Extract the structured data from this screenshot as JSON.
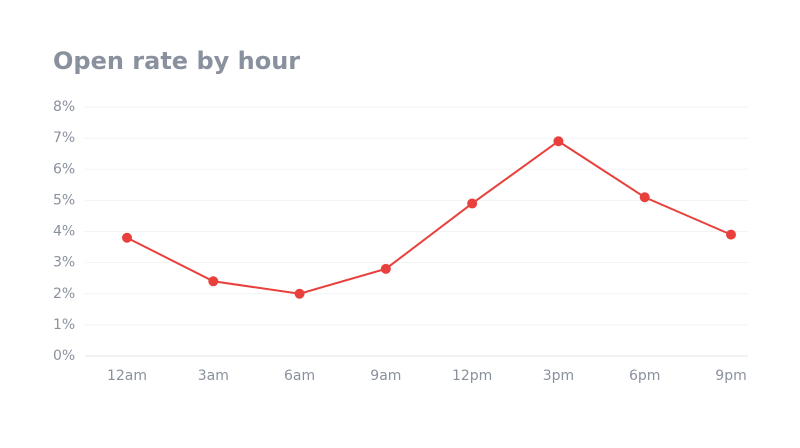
{
  "chart_data": {
    "type": "line",
    "title": "Open rate by hour",
    "categories": [
      "12am",
      "3am",
      "6am",
      "9am",
      "12pm",
      "3pm",
      "6pm",
      "9pm"
    ],
    "series": [
      {
        "name": "Open rate",
        "color": "#e8403c",
        "values": [
          3.8,
          2.4,
          2.0,
          2.8,
          4.9,
          6.9,
          5.1,
          3.9
        ]
      }
    ],
    "ylim": [
      0,
      8
    ],
    "yticks": [
      {
        "value": 0,
        "label": "0%"
      },
      {
        "value": 1,
        "label": "1%"
      },
      {
        "value": 2,
        "label": "2%"
      },
      {
        "value": 3,
        "label": "3%"
      },
      {
        "value": 4,
        "label": "4%"
      },
      {
        "value": 5,
        "label": "5%"
      },
      {
        "value": 6,
        "label": "6%"
      },
      {
        "value": 7,
        "label": "7%"
      },
      {
        "value": 8,
        "label": "8%"
      }
    ],
    "grid": true
  }
}
